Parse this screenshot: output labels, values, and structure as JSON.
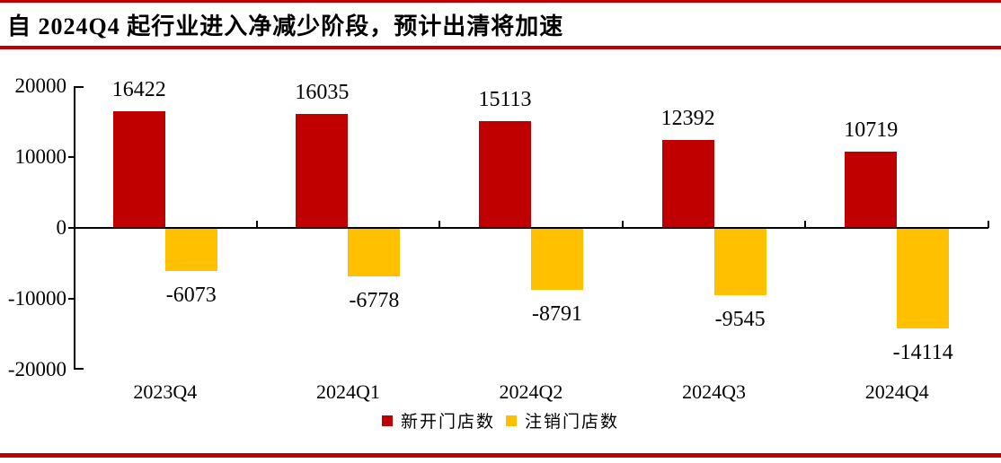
{
  "page": {
    "title": "自 2024Q4 起行业进入净减少阶段，预计出清将加速",
    "accent_color": "#C00000"
  },
  "chart_data": {
    "type": "bar",
    "title": "自 2024Q4 起行业进入净减少阶段，预计出清将加速",
    "categories": [
      "2023Q4",
      "2024Q1",
      "2024Q2",
      "2024Q3",
      "2024Q4"
    ],
    "series": [
      {
        "name": "新开门店数",
        "color": "#C00000",
        "values": [
          16422,
          16035,
          15113,
          12392,
          10719
        ]
      },
      {
        "name": "注销门店数",
        "color": "#FFC000",
        "values": [
          -6073,
          -6778,
          -8791,
          -9545,
          -14114
        ]
      }
    ],
    "ylim": [
      -20000,
      20000
    ],
    "yticks": [
      20000,
      10000,
      0,
      -10000,
      -20000
    ],
    "grid": false,
    "legend_position": "bottom",
    "data_labels": "outside-end",
    "axis_color": "#000000",
    "label_color": "#000000"
  }
}
